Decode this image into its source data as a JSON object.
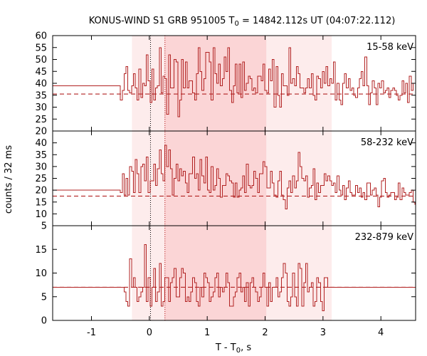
{
  "title_main": "KONUS-WIND S1 GRB 951005 T",
  "title_sub": "0",
  "title_rest": " = 14842.112s UT (04:07:22.112)",
  "xlabel_main": "T - T",
  "xlabel_sub": "0",
  "xlabel_rest": ", s",
  "ylabel": "counts / 32 ms",
  "colors": {
    "line": "#b22222",
    "shade_light": "#fdecec",
    "shade_dark": "#fbd5d6",
    "axis": "#000000"
  },
  "chart_data": {
    "type": "line",
    "x_range": [
      -1.67,
      4.6
    ],
    "x_ticks": [
      -1,
      0,
      1,
      2,
      3,
      4
    ],
    "x_tick_labels": [
      "-1",
      "0",
      "1",
      "2",
      "3",
      "4"
    ],
    "intervals": {
      "light": [
        -0.3,
        3.15
      ],
      "dark": [
        0.26,
        2.02
      ]
    },
    "vlines": [
      0.02,
      0.27
    ],
    "bin_width": 0.032,
    "panels": [
      {
        "label": "15-58 keV",
        "ylim": [
          20,
          60
        ],
        "yticks": [
          20,
          25,
          30,
          35,
          40,
          45,
          50,
          55,
          60
        ],
        "background": 35.5,
        "pre_level": 39,
        "start_x": -0.5,
        "end_x": 4.6,
        "values": [
          33,
          37,
          44,
          47,
          37,
          36,
          39,
          44,
          38,
          33,
          46,
          34,
          40,
          39,
          52,
          41,
          32,
          46,
          33,
          38,
          39,
          55,
          36,
          43,
          42,
          27,
          52,
          38,
          38,
          50,
          49,
          26,
          33,
          50,
          38,
          49,
          38,
          41,
          41,
          36,
          33,
          44,
          55,
          45,
          37,
          42,
          53,
          53,
          49,
          33,
          55,
          44,
          40,
          48,
          39,
          42,
          51,
          45,
          55,
          37,
          32,
          39,
          48,
          36,
          48,
          34,
          49,
          37,
          40,
          43,
          42,
          37,
          38,
          36,
          43,
          43,
          41,
          48,
          37,
          36,
          46,
          41,
          50,
          30,
          47,
          35,
          30,
          44,
          39,
          39,
          35,
          55,
          40,
          42,
          39,
          47,
          44,
          38,
          38,
          36,
          38,
          42,
          38,
          44,
          35,
          33,
          43,
          42,
          38,
          45,
          40,
          47,
          39,
          42,
          40,
          49,
          33,
          40,
          33,
          31,
          40,
          44,
          38,
          42,
          37,
          38,
          35,
          34,
          38,
          42,
          45,
          39,
          51,
          39,
          31,
          36,
          41,
          38,
          31,
          40,
          38,
          41,
          36,
          37,
          38,
          34,
          37,
          38,
          37,
          35,
          33,
          35,
          41,
          36,
          40,
          32,
          43,
          37,
          40
        ]
      },
      {
        "label": "58-232 keV",
        "ylim": [
          5,
          45
        ],
        "yticks": [
          5,
          10,
          15,
          20,
          25,
          30,
          35,
          40
        ],
        "background": 17.5,
        "pre_level": 20,
        "start_x": -0.5,
        "end_x": 4.6,
        "values": [
          19,
          27,
          18,
          25,
          18,
          30,
          28,
          19,
          33,
          27,
          19,
          30,
          31,
          24,
          34,
          19,
          24,
          24,
          31,
          22,
          29,
          37,
          27,
          24,
          39,
          30,
          37,
          29,
          18,
          25,
          31,
          24,
          29,
          26,
          28,
          23,
          19,
          27,
          27,
          34,
          25,
          27,
          20,
          33,
          26,
          23,
          34,
          20,
          19,
          30,
          20,
          22,
          29,
          25,
          17,
          22,
          22,
          27,
          26,
          24,
          23,
          17,
          23,
          17,
          20,
          21,
          26,
          19,
          31,
          22,
          21,
          22,
          28,
          25,
          19,
          27,
          27,
          32,
          30,
          21,
          21,
          28,
          23,
          18,
          17,
          24,
          28,
          18,
          16,
          12,
          21,
          24,
          19,
          26,
          21,
          24,
          36,
          30,
          25,
          24,
          26,
          17,
          21,
          22,
          29,
          16,
          23,
          19,
          22,
          22,
          27,
          24,
          26,
          24,
          22,
          23,
          19,
          26,
          20,
          18,
          22,
          16,
          21,
          24,
          19,
          18,
          18,
          22,
          19,
          21,
          17,
          19,
          16,
          23,
          23,
          18,
          20,
          21,
          18,
          13,
          17,
          24,
          25,
          19,
          17,
          18,
          19,
          19,
          16,
          17,
          23,
          16,
          21,
          19,
          18,
          18,
          19,
          20,
          15,
          14
        ]
      },
      {
        "label": "232-879 keV",
        "ylim": [
          0,
          20
        ],
        "yticks": [
          0,
          5,
          10,
          15
        ],
        "background": 7,
        "pre_level": 7,
        "start_x": -0.5,
        "end_x": 4.6,
        "values": [
          7,
          7,
          6,
          4,
          3,
          13,
          7,
          9,
          7,
          4,
          5,
          6,
          7,
          16,
          4,
          9,
          3,
          7,
          11,
          4,
          6,
          12,
          3,
          4,
          9,
          9,
          4,
          8,
          9,
          11,
          5,
          5,
          9,
          11,
          10,
          4,
          5,
          4,
          6,
          9,
          8,
          4,
          3,
          7,
          5,
          10,
          9,
          8,
          4,
          5,
          6,
          9,
          10,
          5,
          7,
          6,
          7,
          10,
          8,
          3,
          3,
          5,
          6,
          9,
          10,
          6,
          7,
          4,
          8,
          3,
          8,
          9,
          7,
          6,
          4,
          5,
          7,
          10,
          7,
          3,
          8,
          4,
          7,
          7,
          9,
          5,
          6,
          9,
          12,
          10,
          4,
          3,
          5,
          10,
          5,
          3,
          12,
          11,
          3,
          8,
          12,
          6,
          7,
          8,
          3,
          4,
          9,
          8,
          4,
          2,
          9,
          9
        ],
        "tail_level": 7
      }
    ]
  }
}
